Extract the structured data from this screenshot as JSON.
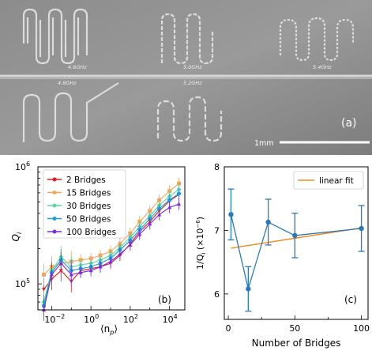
{
  "panel_a": {
    "label": "(a)",
    "scale_bar": "1mm",
    "resonator_labels": [
      "4.6GHz",
      "5.0GHz",
      "5.4GHz",
      "4.8GHz",
      "5.2GHz"
    ]
  },
  "chart_data": [
    {
      "type": "line",
      "panel": "(b)",
      "xscale": "log",
      "yscale": "log",
      "xlabel": "⟨n_p⟩",
      "ylabel": "Q_i",
      "xlim": [
        0.002,
        60000
      ],
      "ylim": [
        60000,
        1000000
      ],
      "x_ticks": [
        "10^-2",
        "10^0",
        "10^2",
        "10^4"
      ],
      "y_ticks": [
        "10^5",
        "10^6"
      ],
      "legend_placement": "top-left",
      "series": [
        {
          "name": "2 Bridges",
          "color": "#e5191f",
          "x": [
            0.004,
            0.01,
            0.03,
            0.1,
            0.3,
            1,
            3,
            10,
            30,
            100,
            300,
            1000,
            3000,
            10000,
            30000
          ],
          "y": [
            90000,
            110000,
            130000,
            105000,
            130000,
            135000,
            140000,
            150000,
            175000,
            220000,
            280000,
            340000,
            420000,
            510000,
            580000
          ]
        },
        {
          "name": "15 Bridges",
          "color": "#f5a55a",
          "x": [
            0.004,
            0.01,
            0.03,
            0.1,
            0.3,
            1,
            3,
            10,
            30,
            100,
            300,
            1000,
            3000,
            10000,
            30000
          ],
          "y": [
            120000,
            140000,
            150000,
            155000,
            160000,
            165000,
            175000,
            190000,
            220000,
            270000,
            340000,
            420000,
            520000,
            620000,
            720000
          ]
        },
        {
          "name": "30 Bridges",
          "color": "#5bd6a0",
          "x": [
            0.004,
            0.01,
            0.03,
            0.1,
            0.3,
            1,
            3,
            10,
            30,
            100,
            300,
            1000,
            3000,
            10000,
            30000
          ],
          "y": [
            70000,
            130000,
            170000,
            140000,
            145000,
            150000,
            160000,
            175000,
            205000,
            250000,
            310000,
            380000,
            470000,
            560000,
            640000
          ]
        },
        {
          "name": "50 Bridges",
          "color": "#1f9bd6",
          "x": [
            0.004,
            0.01,
            0.03,
            0.1,
            0.3,
            1,
            3,
            10,
            30,
            100,
            300,
            1000,
            3000,
            10000,
            30000
          ],
          "y": [
            65000,
            125000,
            160000,
            130000,
            135000,
            140000,
            150000,
            165000,
            195000,
            235000,
            290000,
            360000,
            440000,
            520000,
            590000
          ]
        },
        {
          "name": "100 Bridges",
          "color": "#7a2be0",
          "x": [
            0.004,
            0.01,
            0.03,
            0.1,
            0.3,
            1,
            3,
            10,
            30,
            100,
            300,
            1000,
            3000,
            10000,
            30000
          ],
          "y": [
            60000,
            120000,
            150000,
            120000,
            125000,
            130000,
            140000,
            155000,
            180000,
            215000,
            265000,
            325000,
            390000,
            450000,
            480000
          ]
        }
      ]
    },
    {
      "type": "scatter",
      "panel": "(c)",
      "xlabel": "Number of Bridges",
      "ylabel": "1/Q_i (×10^-6)",
      "xlim": [
        -3,
        105
      ],
      "ylim": [
        5.6,
        8.0
      ],
      "x_ticks": [
        0,
        50,
        100
      ],
      "y_ticks": [
        6,
        7,
        8
      ],
      "legend_placement": "top-right",
      "series": [
        {
          "name": "",
          "color": "#2a7ab8",
          "x": [
            2,
            15,
            30,
            50,
            100
          ],
          "y": [
            7.25,
            6.08,
            7.13,
            6.92,
            7.03
          ],
          "err": [
            0.4,
            0.35,
            0.36,
            0.35,
            0.36
          ]
        }
      ],
      "fit": {
        "name": "linear fit",
        "color": "#f08a24",
        "x": [
          2,
          100
        ],
        "y": [
          6.72,
          7.04
        ]
      }
    }
  ]
}
